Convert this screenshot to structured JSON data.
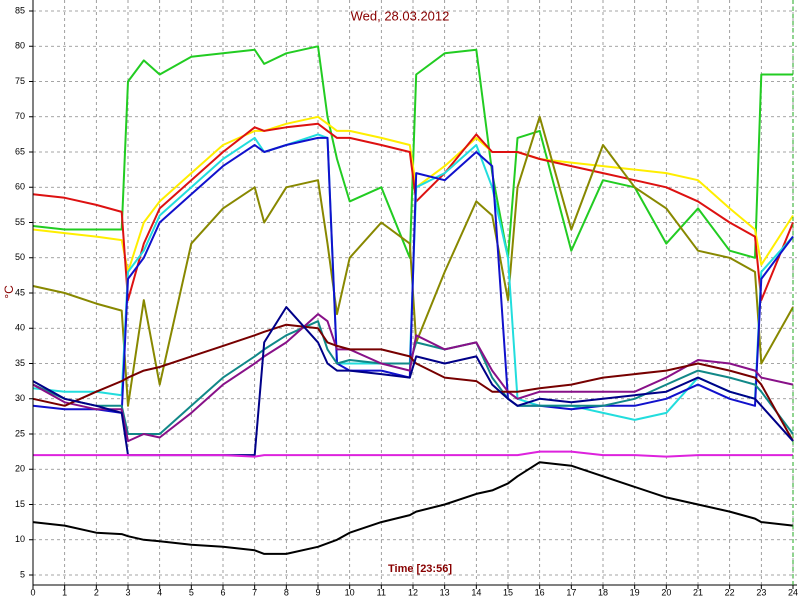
{
  "chart_data": {
    "type": "line",
    "title": "Wed, 28.03.2012",
    "x_label": "Time [23:56]",
    "y_label": "°C",
    "x": [
      0,
      1,
      2,
      2.8,
      3,
      3.5,
      4,
      5,
      6,
      7,
      7.3,
      8,
      9,
      9.3,
      9.6,
      10,
      11,
      11.9,
      12.1,
      13,
      14,
      14.5,
      15,
      15.3,
      16,
      17,
      18,
      19,
      20,
      21,
      22,
      22.8,
      23,
      24
    ],
    "xlim": [
      0,
      24
    ],
    "xticks": [
      0,
      1,
      2,
      3,
      4,
      5,
      6,
      7,
      8,
      9,
      10,
      11,
      12,
      13,
      14,
      15,
      16,
      17,
      18,
      19,
      20,
      21,
      22,
      23,
      24
    ],
    "ylim": [
      5,
      85
    ],
    "yticks": [
      5,
      10,
      15,
      20,
      25,
      30,
      35,
      40,
      45,
      50,
      55,
      60,
      65,
      70,
      75,
      80,
      85
    ],
    "grid": true,
    "series": [
      {
        "color": "#22cc22",
        "values": [
          54.5,
          54,
          54,
          54,
          75,
          78,
          76,
          78.5,
          79,
          79.5,
          77.5,
          79,
          80,
          70,
          64,
          58,
          60,
          50,
          76,
          79,
          79.5,
          62,
          50,
          67,
          68,
          51,
          61,
          60,
          52,
          57,
          51,
          50,
          76,
          76
        ]
      },
      {
        "color": "#ffee00",
        "values": [
          54,
          53.5,
          53,
          52.5,
          48,
          55,
          58,
          62,
          66,
          68,
          68,
          69,
          70,
          69,
          68,
          68,
          67,
          66,
          60,
          63,
          67,
          65,
          65,
          65,
          64,
          63.5,
          63,
          62.5,
          62,
          61,
          57,
          54,
          49,
          56
        ]
      },
      {
        "color": "#dd1111",
        "values": [
          59,
          58.5,
          57.5,
          56.5,
          44,
          52,
          57,
          61,
          65,
          68.5,
          68,
          68.5,
          69,
          68,
          67,
          67,
          66,
          65,
          58,
          62,
          67.5,
          65,
          65,
          65,
          64,
          63,
          62,
          61,
          60,
          58,
          55,
          53,
          44,
          55
        ]
      },
      {
        "color": "#888800",
        "values": [
          46,
          45,
          43.5,
          42.5,
          29,
          44,
          32,
          52,
          57,
          60,
          55,
          60,
          61,
          52,
          42,
          50,
          55,
          52,
          38,
          48,
          58,
          56,
          44,
          60,
          70,
          54,
          66,
          60,
          57,
          51,
          50,
          48,
          35,
          43
        ]
      },
      {
        "color": "#22dddd",
        "values": [
          31.5,
          31,
          31,
          30.5,
          48,
          51,
          56,
          60,
          64,
          67,
          65,
          66,
          67.5,
          67,
          35,
          35,
          35,
          35,
          60,
          62,
          66,
          60,
          50,
          30,
          29,
          29,
          28,
          27,
          28,
          33,
          31,
          30,
          48,
          53
        ]
      },
      {
        "color": "#1111cc",
        "values": [
          29,
          28.5,
          28.5,
          28,
          47,
          50,
          55,
          59,
          63,
          66,
          65,
          66,
          67,
          67,
          35,
          34,
          34,
          33,
          62,
          61,
          65,
          63,
          30,
          29,
          29,
          28.5,
          29,
          29,
          30,
          32,
          30,
          29,
          47,
          53
        ]
      },
      {
        "color": "#118888",
        "values": [
          32,
          30,
          29,
          29,
          25,
          25,
          25,
          29,
          33,
          36,
          37,
          39,
          41,
          37,
          35,
          35.5,
          35,
          35,
          38,
          37,
          38,
          33,
          30,
          29,
          29,
          29,
          29,
          30,
          32,
          34,
          33,
          32,
          31,
          25
        ]
      },
      {
        "color": "#881188",
        "values": [
          32,
          29.5,
          28.5,
          28.5,
          24,
          25,
          24.5,
          28,
          32,
          35,
          36,
          38,
          42,
          41,
          37,
          37,
          35,
          34,
          39,
          37,
          38,
          34,
          31,
          30,
          31,
          31,
          31,
          31,
          33,
          35.5,
          35,
          34,
          33,
          32
        ]
      },
      {
        "color": "#770000",
        "values": [
          30,
          29,
          31,
          32.5,
          33,
          34,
          34.5,
          36,
          37.5,
          39,
          39.5,
          40.5,
          40,
          38,
          37.5,
          37,
          37,
          36,
          35,
          33,
          32.5,
          31,
          31,
          31,
          31.5,
          32,
          33,
          33.5,
          34,
          35,
          34,
          33,
          32,
          24
        ]
      },
      {
        "color": "#000088",
        "values": [
          32.5,
          30,
          29,
          28,
          22,
          22,
          22,
          22,
          22,
          22,
          38,
          43,
          38,
          35,
          34,
          34,
          33.5,
          33,
          36,
          35,
          36,
          32,
          30,
          29,
          30,
          29.5,
          30,
          30.5,
          31,
          33,
          31,
          30,
          29,
          24
        ]
      },
      {
        "color": "#dd22dd",
        "values": [
          22,
          22,
          22,
          22,
          22,
          22,
          22,
          22,
          22,
          21.8,
          22,
          22,
          22,
          22,
          22,
          22,
          22,
          22,
          22,
          22,
          22,
          22,
          22,
          22,
          22.5,
          22.5,
          22,
          22,
          21.8,
          22,
          22,
          22,
          22,
          22
        ]
      },
      {
        "color": "#000000",
        "values": [
          12.5,
          12,
          11,
          10.8,
          10.5,
          10,
          9.8,
          9.3,
          9,
          8.5,
          8,
          8,
          9,
          9.5,
          10,
          11,
          12.5,
          13.5,
          14,
          15,
          16.5,
          17,
          18,
          19,
          21,
          20.5,
          19,
          17.5,
          16,
          15,
          14,
          13,
          12.5,
          12
        ]
      }
    ]
  }
}
